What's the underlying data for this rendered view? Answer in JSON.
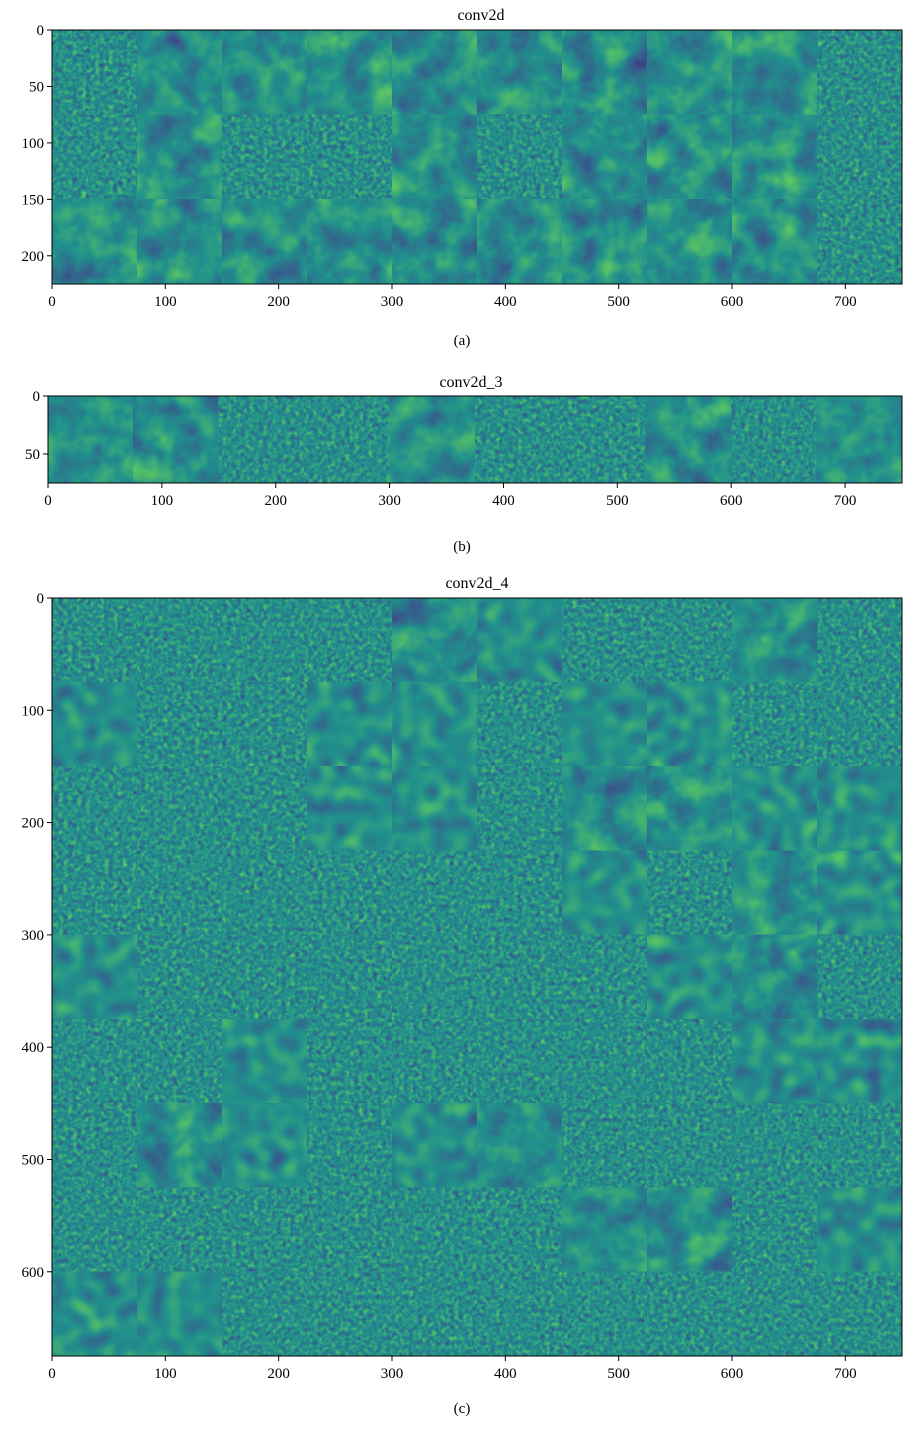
{
  "panels": [
    {
      "id": "a",
      "title": "conv2d",
      "caption": "(a)",
      "grid": {
        "rows": 3,
        "cols": 10
      },
      "x_ticks": [
        "0",
        "100",
        "200",
        "300",
        "400",
        "500",
        "600",
        "700"
      ],
      "y_ticks": [
        "0",
        "50",
        "100",
        "150",
        "200"
      ],
      "xlim": [
        0,
        750
      ],
      "ylim": [
        0,
        225
      ]
    },
    {
      "id": "b",
      "title": "conv2d_3",
      "caption": "(b)",
      "grid": {
        "rows": 1,
        "cols": 10
      },
      "x_ticks": [
        "0",
        "100",
        "200",
        "300",
        "400",
        "500",
        "600",
        "700"
      ],
      "y_ticks": [
        "0",
        "50"
      ],
      "xlim": [
        0,
        750
      ],
      "ylim": [
        0,
        75
      ]
    },
    {
      "id": "c",
      "title": "conv2d_4",
      "caption": "(c)",
      "grid": {
        "rows": 9,
        "cols": 10
      },
      "x_ticks": [
        "0",
        "100",
        "200",
        "300",
        "400",
        "500",
        "600",
        "700"
      ],
      "y_ticks": [
        "0",
        "100",
        "200",
        "300",
        "400",
        "500",
        "600"
      ],
      "xlim": [
        0,
        750
      ],
      "ylim": [
        0,
        675
      ]
    }
  ],
  "colormap": [
    "#440154",
    "#3b528b",
    "#21918c",
    "#5ec962",
    "#fde725"
  ]
}
